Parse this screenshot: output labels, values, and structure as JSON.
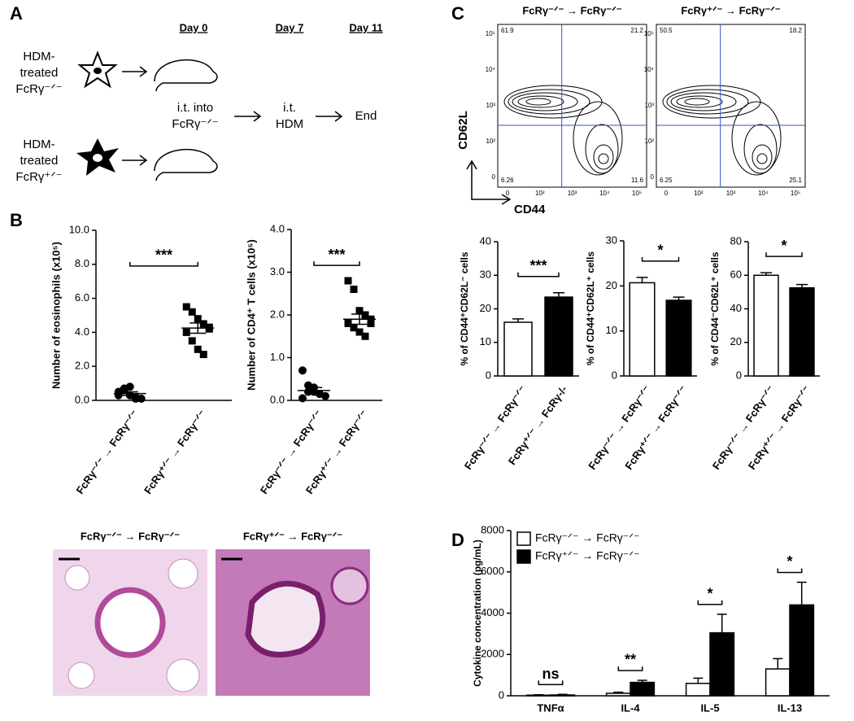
{
  "panels": [
    "A",
    "B",
    "C",
    "D"
  ],
  "panel_a": {
    "days": [
      "Day 0",
      "Day 7",
      "Day 11"
    ],
    "donor_1": [
      "HDM-",
      "treated",
      "FcRγ⁻ᐟ⁻"
    ],
    "donor_2": [
      "HDM-",
      "treated",
      "FcRγ⁺ᐟ⁻"
    ],
    "transfer": [
      "i.t. into",
      "FcRγ⁻ᐟ⁻"
    ],
    "challenge": [
      "i.t.",
      "HDM"
    ],
    "end": "End"
  },
  "histology": {
    "titles": [
      "FcRγ⁻ᐟ⁻ → FcRγ⁻ᐟ⁻",
      "FcRγ⁺ᐟ⁻ → FcRγ⁻ᐟ⁻"
    ]
  },
  "flow": {
    "titles": [
      "FcRγ⁻ᐟ⁻ → FcRγ⁻ᐟ⁻",
      "FcRγ⁺ᐟ⁻ → FcRγ⁻ᐟ⁻"
    ],
    "quadrants": [
      [
        "61.9",
        "21.2",
        "6.26",
        "11.6"
      ],
      [
        "50.5",
        "18.2",
        "6.25",
        "25.1"
      ]
    ],
    "ticks": [
      "0",
      "10²",
      "10³",
      "10⁴",
      "10⁵"
    ],
    "ylabel": "CD62L",
    "xlabel": "CD44"
  },
  "chart_data": [
    {
      "type": "dotplot",
      "ylabel": "Number of eosinophils (x10⁵)",
      "categories": [
        "FcRγ⁻ᐟ⁻ → FcRγ⁻ᐟ⁻",
        "FcRγ⁺ᐟ⁻ → FcRγ⁻ᐟ⁻"
      ],
      "markers": [
        "circle",
        "square"
      ],
      "points": [
        [
          0.3,
          0.6,
          0.8,
          0.2,
          0.1,
          0.5,
          0.7,
          0.3,
          0.1
        ],
        [
          5.5,
          5.2,
          4.8,
          4.5,
          4.3,
          4.0,
          3.5,
          3.0,
          2.7,
          4.2
        ]
      ],
      "means": [
        0.4,
        4.25
      ],
      "errors": [
        0.1,
        0.3
      ],
      "annotation": "***",
      "ylim": [
        0,
        10
      ],
      "yticks": [
        {
          "value": 0,
          "label": "0.0"
        },
        {
          "value": 2,
          "label": "2.0"
        },
        {
          "value": 4,
          "label": "4.0"
        },
        {
          "value": 6,
          "label": "6.0"
        },
        {
          "value": 8,
          "label": "8.0"
        },
        {
          "value": 10,
          "label": "10.0"
        }
      ]
    },
    {
      "type": "dotplot",
      "ylabel": "Number of CD4⁺ T cells (x10⁵)",
      "categories": [
        "FcRγ⁻ᐟ⁻ → FcRγ⁻ᐟ⁻",
        "FcRγ⁺ᐟ⁻ → FcRγ⁻ᐟ⁻"
      ],
      "markers": [
        "circle",
        "square"
      ],
      "points": [
        [
          0.7,
          0.35,
          0.2,
          0.15,
          0.1,
          0.05,
          0.2,
          0.3,
          0.15
        ],
        [
          2.8,
          2.6,
          2.1,
          2.0,
          1.9,
          1.8,
          1.7,
          1.6,
          1.5,
          1.8
        ]
      ],
      "means": [
        0.23,
        1.9
      ],
      "errors": [
        0.07,
        0.12
      ],
      "annotation": "***",
      "ylim": [
        0,
        4
      ],
      "yticks": [
        {
          "value": 0,
          "label": "0.0"
        },
        {
          "value": 1,
          "label": "1.0"
        },
        {
          "value": 2,
          "label": "2.0"
        },
        {
          "value": 3,
          "label": "3.0"
        },
        {
          "value": 4,
          "label": "4.0"
        }
      ]
    },
    {
      "type": "bar",
      "ylabel": "% of CD44⁺CD62L⁻ cells",
      "categories": [
        "FcRγ⁻ᐟ⁻ → FcRγ⁻ᐟ⁻",
        "FcRγ⁺ᐟ⁻ → FcRγ-/-"
      ],
      "colors": [
        "#ffffff",
        "#000000"
      ],
      "values": [
        16,
        23.5
      ],
      "errors": [
        1,
        1.3
      ],
      "annotation": "***",
      "ylim": [
        0,
        40
      ],
      "yticks": [
        0,
        10,
        20,
        30,
        40
      ]
    },
    {
      "type": "bar",
      "ylabel": "% of CD44⁺CD62L⁺ cells",
      "categories": [
        "FcRγ⁻ᐟ⁻ → FcRγ⁻ᐟ⁻",
        "FcRγ⁺ᐟ⁻ → FcRγ⁻ᐟ⁻"
      ],
      "colors": [
        "#ffffff",
        "#000000"
      ],
      "values": [
        20.7,
        16.8
      ],
      "errors": [
        1.2,
        0.7
      ],
      "annotation": "*",
      "ylim": [
        0,
        30
      ],
      "yticks": [
        0,
        10,
        20,
        30
      ]
    },
    {
      "type": "bar",
      "ylabel": "% of CD44⁻CD62L⁺ cells",
      "categories": [
        "FcRγ⁻ᐟ⁻ → FcRγ⁻ᐟ⁻",
        "FcRγ⁺ᐟ⁻ → FcRγ⁻ᐟ⁻"
      ],
      "colors": [
        "#ffffff",
        "#000000"
      ],
      "values": [
        60,
        52.5
      ],
      "errors": [
        1.5,
        2
      ],
      "annotation": "*",
      "ylim": [
        0,
        80
      ],
      "yticks": [
        0,
        20,
        40,
        60,
        80
      ]
    },
    {
      "type": "grouped_bar",
      "ylabel": "Cytokine concentration (pg/mL)",
      "categories": [
        "TNFα",
        "IL-4",
        "IL-5",
        "IL-13"
      ],
      "series": [
        {
          "name": "FcRγ⁻ᐟ⁻ → FcRγ⁻ᐟ⁻",
          "color": "#ffffff",
          "values": [
            30,
            120,
            600,
            1300
          ],
          "errors": [
            20,
            50,
            250,
            500
          ]
        },
        {
          "name": "FcRγ⁺ᐟ⁻ → FcRγ⁻ᐟ⁻",
          "color": "#000000",
          "values": [
            40,
            650,
            3050,
            4400
          ],
          "errors": [
            30,
            100,
            900,
            1100
          ]
        }
      ],
      "annotations": [
        "ns",
        "**",
        "*",
        "*"
      ],
      "ylim": [
        0,
        8000
      ],
      "yticks": [
        0,
        2000,
        4000,
        6000,
        8000
      ]
    }
  ]
}
